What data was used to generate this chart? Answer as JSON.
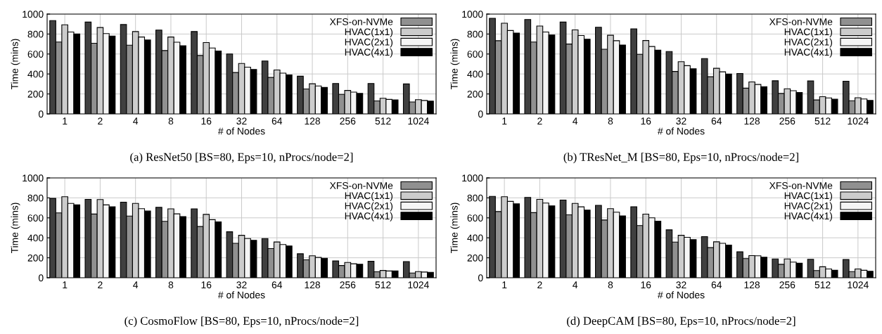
{
  "chart_data": [
    {
      "type": "bar",
      "title": "(a) ResNet50 [BS=80, Eps=10, nProcs/node=2]",
      "xlabel": "# of Nodes",
      "ylabel": "Time (mins)",
      "categories": [
        "1",
        "2",
        "4",
        "8",
        "16",
        "32",
        "64",
        "128",
        "256",
        "512",
        "1024"
      ],
      "ylim": [
        0,
        1000
      ],
      "yticks": [
        0,
        200,
        400,
        600,
        800,
        1000
      ],
      "grid": true,
      "legend": "top right",
      "series": [
        {
          "color": "#404040",
          "values": [
            935,
            920,
            895,
            840,
            825,
            600,
            530,
            378,
            305,
            305,
            300
          ]
        },
        {
          "name": "XFS-on-NVMe",
          "color": "#909090",
          "values": [
            720,
            708,
            688,
            635,
            585,
            415,
            365,
            250,
            195,
            130,
            120
          ]
        },
        {
          "name": "HVAC(1x1)",
          "color": "#cccccc",
          "values": [
            893,
            865,
            825,
            770,
            715,
            505,
            440,
            302,
            235,
            157,
            143
          ]
        },
        {
          "name": "HVAC(2x1)",
          "color": "#f5f5f5",
          "values": [
            820,
            805,
            770,
            718,
            660,
            468,
            408,
            280,
            218,
            145,
            135
          ]
        },
        {
          "name": "HVAC(4x1)",
          "color": "#000000",
          "values": [
            800,
            780,
            740,
            682,
            630,
            445,
            390,
            265,
            205,
            140,
            128
          ]
        }
      ]
    },
    {
      "type": "bar",
      "title": "(b) TResNet_M [BS=80, Eps=10, nProcs/node=2]",
      "xlabel": "# of Nodes",
      "ylabel": "Time (mins)",
      "categories": [
        "1",
        "2",
        "4",
        "8",
        "16",
        "32",
        "64",
        "128",
        "256",
        "512",
        "1024"
      ],
      "ylim": [
        0,
        1000
      ],
      "yticks": [
        0,
        200,
        400,
        600,
        800,
        1000
      ],
      "grid": true,
      "legend": "top right",
      "series": [
        {
          "color": "#404040",
          "values": [
            958,
            945,
            920,
            868,
            852,
            625,
            555,
            405,
            332,
            330,
            327
          ]
        },
        {
          "name": "XFS-on-NVMe",
          "color": "#909090",
          "values": [
            733,
            720,
            700,
            648,
            597,
            425,
            372,
            258,
            205,
            140,
            132
          ]
        },
        {
          "name": "HVAC(1x1)",
          "color": "#cccccc",
          "values": [
            908,
            880,
            842,
            788,
            735,
            523,
            457,
            320,
            252,
            173,
            162
          ]
        },
        {
          "name": "HVAC(2x1)",
          "color": "#f5f5f5",
          "values": [
            835,
            820,
            785,
            733,
            675,
            483,
            422,
            295,
            232,
            160,
            150
          ]
        },
        {
          "name": "HVAC(4x1)",
          "color": "#000000",
          "values": [
            810,
            790,
            748,
            690,
            638,
            452,
            400,
            273,
            215,
            147,
            135
          ]
        }
      ]
    },
    {
      "type": "bar",
      "title": "(c) CosmoFlow [BS=80, Eps=10, nProcs/node=2]",
      "xlabel": "# of Nodes",
      "ylabel": "Time (mins)",
      "categories": [
        "1",
        "2",
        "4",
        "8",
        "16",
        "32",
        "64",
        "128",
        "256",
        "512",
        "1024"
      ],
      "ylim": [
        0,
        1000
      ],
      "yticks": [
        0,
        200,
        400,
        600,
        800,
        1000
      ],
      "grid": true,
      "legend": "top right",
      "series": [
        {
          "color": "#404040",
          "values": [
            795,
            785,
            757,
            705,
            690,
            460,
            393,
            240,
            168,
            165,
            162
          ]
        },
        {
          "name": "XFS-on-NVMe",
          "color": "#909090",
          "values": [
            650,
            638,
            618,
            565,
            513,
            345,
            292,
            180,
            122,
            60,
            48
          ]
        },
        {
          "name": "HVAC(1x1)",
          "color": "#cccccc",
          "values": [
            812,
            783,
            745,
            690,
            635,
            425,
            358,
            220,
            153,
            73,
            62
          ]
        },
        {
          "name": "HVAC(2x1)",
          "color": "#f5f5f5",
          "values": [
            745,
            730,
            692,
            640,
            582,
            393,
            333,
            203,
            140,
            68,
            57
          ]
        },
        {
          "name": "HVAC(4x1)",
          "color": "#000000",
          "values": [
            730,
            710,
            668,
            612,
            560,
            375,
            318,
            195,
            135,
            68,
            55
          ]
        }
      ]
    },
    {
      "type": "bar",
      "title": "(d) DeepCAM [BS=80, Eps=10, nProcs/node=2]",
      "xlabel": "# of Nodes",
      "ylabel": "Time (mins)",
      "categories": [
        "1",
        "2",
        "4",
        "8",
        "16",
        "32",
        "64",
        "128",
        "256",
        "512",
        "1024"
      ],
      "ylim": [
        0,
        1000
      ],
      "yticks": [
        0,
        200,
        400,
        600,
        800,
        1000
      ],
      "grid": true,
      "legend": "top right",
      "series": [
        {
          "color": "#404040",
          "values": [
            815,
            805,
            778,
            725,
            710,
            480,
            412,
            260,
            188,
            185,
            182
          ]
        },
        {
          "name": "XFS-on-NVMe",
          "color": "#909090",
          "values": [
            663,
            652,
            630,
            578,
            523,
            357,
            302,
            192,
            135,
            72,
            62
          ]
        },
        {
          "name": "HVAC(1x1)",
          "color": "#cccccc",
          "values": [
            812,
            785,
            745,
            692,
            637,
            425,
            360,
            222,
            188,
            110,
            88
          ]
        },
        {
          "name": "HVAC(2x1)",
          "color": "#f5f5f5",
          "values": [
            765,
            748,
            710,
            657,
            600,
            405,
            345,
            220,
            157,
            88,
            75
          ]
        },
        {
          "name": "HVAC(4x1)",
          "color": "#000000",
          "values": [
            740,
            720,
            678,
            620,
            567,
            382,
            327,
            205,
            145,
            75,
            65
          ]
        }
      ]
    }
  ]
}
